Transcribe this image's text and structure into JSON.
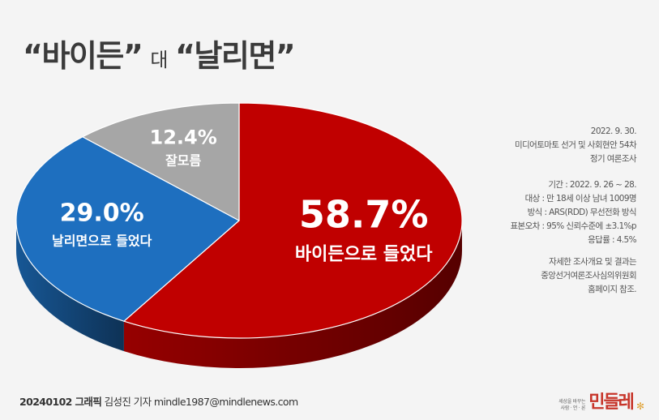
{
  "title": {
    "part1": "“바이든”",
    "connector": "대",
    "part2": "“날리면”"
  },
  "chart_data": {
    "type": "pie",
    "title": "“바이든” 대 “날리면”",
    "slices": [
      {
        "label": "바이든으로 들었다",
        "value": 58.7,
        "display": "58.7%",
        "color": "#c00000"
      },
      {
        "label": "날리면으로 들었다",
        "value": 29.0,
        "display": "29.0%",
        "color": "#1e6fbf"
      },
      {
        "label": "잘모름",
        "value": 12.4,
        "display": "12.4%",
        "color": "#a6a6a6"
      }
    ]
  },
  "info": {
    "header": [
      "2022. 9. 30.",
      "미디어토마토 선거 및 사회현안 54차",
      "정기 여론조사"
    ],
    "details": [
      "기간 : 2022. 9. 26 ~ 28.",
      "대상 : 만 18세 이상 남녀 1009명",
      "방식 : ARS(RDD) 무선전화 방식",
      "표본오차 : 95% 신뢰수준에 ±3.1%p",
      "응답률 : 4.5%"
    ],
    "note": [
      "자세한 조사개요 및 결과는",
      "중앙선거여론조사심의위원회",
      "홈페이지 참조."
    ]
  },
  "footer": {
    "bold": "20240102 그래픽",
    "rest": " 김성진 기자 mindle1987@mindlenews.com"
  },
  "logo": {
    "tagline1": "세상을 바꾸는",
    "tagline2": "사람 · 언 · 론",
    "name": "민들레"
  }
}
